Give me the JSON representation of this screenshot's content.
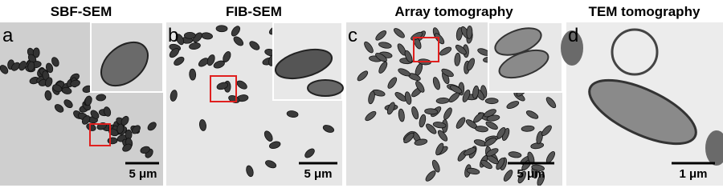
{
  "panels": [
    {
      "title": "SBF-SEM",
      "letter": "a",
      "scale_bar": "5 μm"
    },
    {
      "title": "FIB-SEM",
      "letter": "b",
      "scale_bar": "5 μm"
    },
    {
      "title": "Array tomography",
      "letter": "c",
      "scale_bar": "5 μm"
    },
    {
      "title": "TEM tomography",
      "letter": "d",
      "scale_bar": "1 μm"
    }
  ]
}
